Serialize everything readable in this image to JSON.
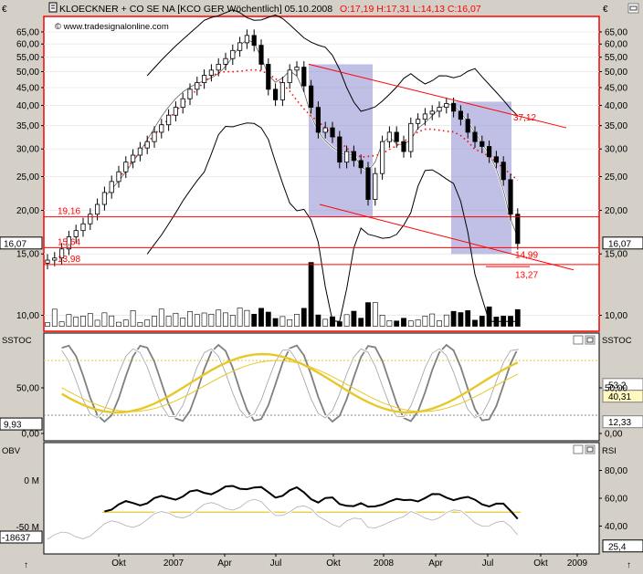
{
  "header": {
    "currency_symbol": "€",
    "instrument": "KLOECKNER + CO SE NA [KCO GER  Wöchentlich] 05.10.2008",
    "ohlc": "O:17,19 H:17,31 L:14,13 C:16,07",
    "watermark": "© www.tradesignalonline.com"
  },
  "colors": {
    "background": "#d4d0c8",
    "plot_bg": "#ffffff",
    "red": "#ff0000",
    "gold": "#e6c828",
    "gray": "#808080",
    "box": "#8c8cd2"
  },
  "chart_data": [
    {
      "type": "line",
      "panel": "price",
      "scale": "log",
      "y_ticks": [
        "65,00",
        "60,00",
        "55,00",
        "50,00",
        "45,00",
        "40,00",
        "35,00",
        "30,00",
        "25,00",
        "20,00",
        "15,00",
        "10,00"
      ],
      "y_tick_values": [
        65,
        60,
        55,
        50,
        45,
        40,
        35,
        30,
        25,
        20,
        15,
        10
      ],
      "ylim": [
        9,
        72
      ],
      "x_ticks": [
        "Okt",
        "2007",
        "Apr",
        "Jul",
        "Okt",
        "2008",
        "Apr",
        "Jul",
        "Okt",
        "2009"
      ],
      "last_price_label": "16,07",
      "last_price": 16.07,
      "horizontal_levels": [
        {
          "label": "19,16",
          "value": 19.16
        },
        {
          "label": "15,64",
          "value": 15.64
        },
        {
          "label": "13,98",
          "value": 13.98
        }
      ],
      "annotations": [
        {
          "label": "37,12",
          "value": 37.12
        },
        {
          "label": "14,99",
          "value": 14.99
        },
        {
          "label": "13,27",
          "value": 13.27
        }
      ],
      "close_series": [
        14.4,
        14.6,
        15.5,
        16.8,
        17.5,
        18.3,
        19.5,
        20.8,
        22.5,
        24.2,
        25.8,
        27.5,
        28.8,
        30.2,
        31.5,
        33.5,
        35.2,
        37.5,
        39.5,
        41.8,
        44.5,
        46.5,
        48.8,
        50.5,
        52.5,
        54.5,
        57.5,
        60.5,
        63.5,
        59.5,
        52.5,
        44.5,
        41.5,
        46.5,
        50.5,
        51.5,
        45.5,
        39.5,
        33.5,
        34.5,
        32.5,
        27.5,
        29.5,
        27.8,
        26.5,
        21.5,
        25.5,
        31.5,
        33.5,
        31.5,
        29.5,
        35.5,
        36.5,
        37.8,
        38.5,
        39.5,
        40.5,
        38.5,
        36.5,
        33.5,
        31.5,
        30.5,
        28.5,
        27.5,
        24.5,
        19.5,
        16.07
      ]
    },
    {
      "type": "line",
      "panel": "sstoc",
      "indicator_label": "SSTOC",
      "y_ticks": [
        "50,00",
        "0,00"
      ],
      "y_tick_values": [
        50,
        0
      ],
      "ylim": [
        -8,
        110
      ],
      "left_value_label": "9,93",
      "right_value_labels": [
        "53,2",
        "40,31",
        "12,33"
      ],
      "right_values": [
        53.2,
        40.31,
        12.33
      ]
    },
    {
      "type": "line",
      "panel": "obv_rsi",
      "left_indicator_label": "OBV",
      "right_indicator_label": "RSI",
      "left_ticks": [
        "0 M",
        "-50 M"
      ],
      "right_ticks": [
        "80,00",
        "60,00",
        "40,00"
      ],
      "right_tick_values": [
        80,
        60,
        40
      ],
      "ylim": [
        20,
        100
      ],
      "left_value_label": "-18637",
      "right_value_label": "25,4",
      "right_value": 25.4
    }
  ]
}
